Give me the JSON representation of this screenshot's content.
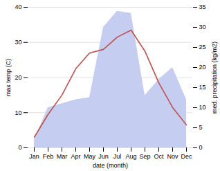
{
  "chart_data": {
    "type": "line",
    "xlabel": "date (month)",
    "ylabel": "max temp (C)",
    "y2label": "med. precipitation (kg/m2)",
    "categories": [
      "Jan",
      "Feb",
      "Mar",
      "Apr",
      "May",
      "Jun",
      "Jul",
      "Aug",
      "Sep",
      "Oct",
      "Nov",
      "Dec"
    ],
    "series": [
      {
        "type": "area",
        "axis": "y2",
        "color": "#c5cef0",
        "values": [
          2.0,
          10.0,
          11.0,
          12.0,
          12.5,
          30.0,
          34.0,
          33.5,
          13.0,
          17.0,
          20.0,
          12.0
        ]
      },
      {
        "type": "line",
        "color": "#c0504d",
        "values": [
          3.0,
          9.5,
          15.0,
          22.5,
          27.0,
          28.0,
          31.5,
          33.5,
          27.5,
          18.5,
          11.5,
          6.5
        ]
      }
    ],
    "ylim": [
      0,
      40
    ],
    "yticks": [
      0,
      10,
      20,
      30,
      40
    ],
    "y2lim": [
      0,
      35
    ],
    "y2ticks": [
      0,
      5,
      10,
      15,
      20,
      25,
      30,
      35
    ],
    "grid": true
  }
}
